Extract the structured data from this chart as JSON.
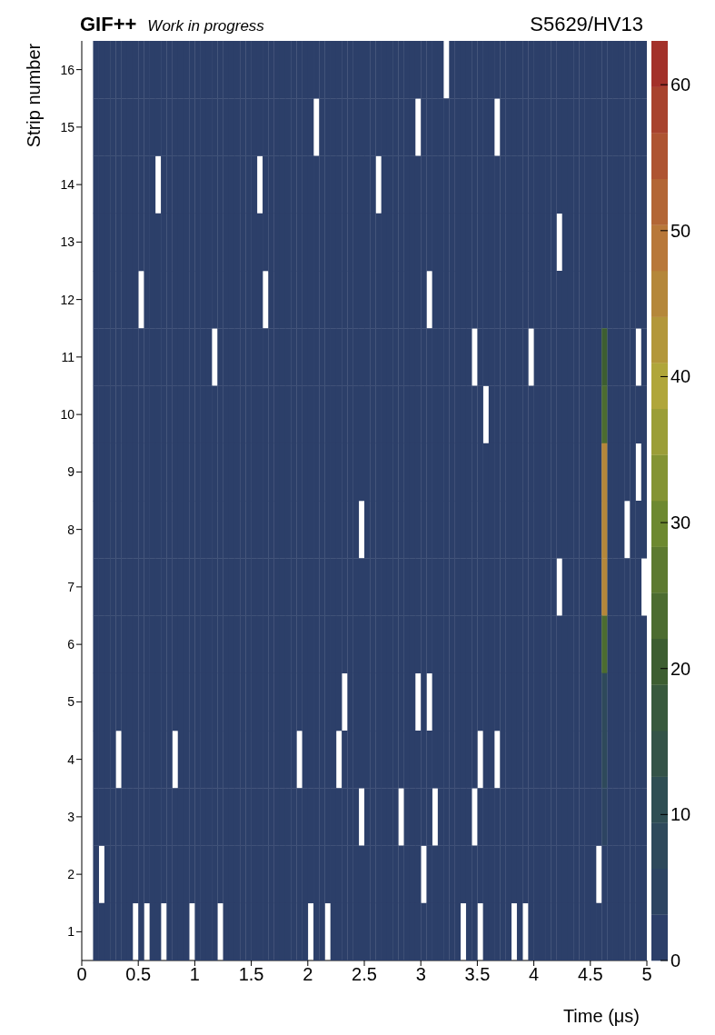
{
  "chart_data": {
    "type": "heatmap",
    "title": "GIF++",
    "subtitle": "Work in progress",
    "annotations": [
      "S5629/HV13"
    ],
    "xlabel": "Time (μs)",
    "ylabel": "Strip number",
    "x": [
      0.025,
      0.075,
      0.125,
      0.175,
      0.225,
      0.275,
      0.325,
      0.375,
      0.425,
      0.475,
      0.525,
      0.575,
      0.625,
      0.675,
      0.725,
      0.775,
      0.825,
      0.875,
      0.925,
      0.975,
      1.025,
      1.075,
      1.125,
      1.175,
      1.225,
      1.275,
      1.325,
      1.375,
      1.425,
      1.475,
      1.525,
      1.575,
      1.625,
      1.675,
      1.725,
      1.775,
      1.825,
      1.875,
      1.925,
      1.975,
      2.025,
      2.075,
      2.125,
      2.175,
      2.225,
      2.275,
      2.325,
      2.375,
      2.425,
      2.475,
      2.525,
      2.575,
      2.625,
      2.675,
      2.725,
      2.775,
      2.825,
      2.875,
      2.925,
      2.975,
      3.025,
      3.075,
      3.125,
      3.175,
      3.225,
      3.275,
      3.325,
      3.375,
      3.425,
      3.475,
      3.525,
      3.575,
      3.625,
      3.675,
      3.725,
      3.775,
      3.825,
      3.875,
      3.925,
      3.975,
      4.025,
      4.075,
      4.125,
      4.175,
      4.225,
      4.275,
      4.325,
      4.375,
      4.425,
      4.475,
      4.525,
      4.575,
      4.625,
      4.675,
      4.725,
      4.775,
      4.825,
      4.875,
      4.925,
      4.975
    ],
    "y_categories": [
      "16",
      "15",
      "14",
      "13",
      "12",
      "11",
      "10",
      "9",
      "8",
      "7",
      "6",
      "5",
      "4",
      "3",
      "2",
      "1"
    ],
    "cells": [
      [
        null,
        null,
        1,
        1,
        1,
        1,
        1,
        1,
        1,
        1,
        1,
        1,
        1,
        1,
        1,
        1,
        1,
        1,
        1,
        1,
        1,
        1,
        1,
        1,
        1,
        1,
        1,
        1,
        1,
        1,
        1,
        1,
        1,
        1,
        1,
        1,
        1,
        1,
        1,
        1,
        1,
        1,
        1,
        1,
        1,
        1,
        1,
        1,
        1,
        1,
        1,
        1,
        1,
        1,
        1,
        1,
        1,
        1,
        1,
        1,
        1,
        1,
        1,
        1,
        null,
        1,
        1,
        1,
        1,
        1,
        1,
        1,
        1,
        1,
        1,
        1,
        1,
        1,
        1,
        1,
        1,
        1,
        1,
        1,
        1,
        1,
        1,
        1,
        1,
        1,
        1,
        1,
        1,
        1,
        1,
        1,
        1,
        1,
        1,
        1
      ],
      [
        null,
        null,
        1,
        1,
        1,
        1,
        1,
        1,
        1,
        1,
        1,
        1,
        1,
        1,
        1,
        1,
        1,
        1,
        1,
        1,
        1,
        1,
        1,
        1,
        1,
        1,
        1,
        1,
        1,
        1,
        1,
        1,
        1,
        1,
        1,
        1,
        1,
        1,
        1,
        1,
        1,
        null,
        1,
        1,
        1,
        1,
        1,
        1,
        1,
        1,
        1,
        1,
        1,
        1,
        1,
        1,
        1,
        1,
        1,
        null,
        1,
        1,
        1,
        1,
        1,
        1,
        1,
        1,
        1,
        1,
        1,
        1,
        1,
        null,
        1,
        1,
        1,
        1,
        1,
        1,
        1,
        1,
        1,
        1,
        1,
        1,
        1,
        1,
        1,
        1,
        1,
        1,
        1,
        1,
        1,
        1,
        1,
        1,
        1,
        1
      ],
      [
        null,
        null,
        1,
        1,
        1,
        1,
        1,
        1,
        1,
        1,
        1,
        1,
        1,
        null,
        1,
        1,
        1,
        1,
        1,
        1,
        1,
        1,
        1,
        1,
        1,
        1,
        1,
        1,
        1,
        1,
        1,
        null,
        1,
        1,
        1,
        1,
        1,
        1,
        1,
        1,
        1,
        1,
        1,
        1,
        1,
        1,
        1,
        1,
        1,
        1,
        1,
        1,
        null,
        1,
        1,
        1,
        1,
        1,
        1,
        1,
        1,
        1,
        1,
        1,
        1,
        1,
        1,
        1,
        1,
        1,
        1,
        1,
        1,
        1,
        1,
        1,
        1,
        1,
        1,
        1,
        1,
        1,
        1,
        1,
        1,
        1,
        1,
        1,
        1,
        1,
        1,
        1,
        1,
        1,
        1,
        1,
        1,
        1,
        1,
        1
      ],
      [
        null,
        null,
        1,
        1,
        1,
        1,
        1,
        1,
        1,
        1,
        1,
        1,
        1,
        1,
        1,
        1,
        1,
        1,
        1,
        1,
        1,
        1,
        1,
        1,
        1,
        1,
        1,
        1,
        1,
        1,
        1,
        1,
        1,
        1,
        1,
        1,
        1,
        1,
        1,
        1,
        1,
        1,
        1,
        1,
        1,
        1,
        1,
        1,
        1,
        1,
        1,
        1,
        1,
        1,
        1,
        1,
        1,
        1,
        1,
        1,
        1,
        1,
        1,
        1,
        1,
        1,
        1,
        1,
        1,
        1,
        1,
        1,
        1,
        1,
        1,
        1,
        1,
        1,
        1,
        1,
        1,
        1,
        1,
        1,
        null,
        1,
        1,
        1,
        1,
        1,
        1,
        1,
        1,
        1,
        1,
        1,
        1,
        1,
        1,
        1
      ],
      [
        null,
        null,
        1,
        1,
        1,
        1,
        1,
        1,
        1,
        1,
        null,
        1,
        1,
        1,
        1,
        1,
        1,
        1,
        1,
        1,
        1,
        1,
        1,
        1,
        1,
        1,
        1,
        1,
        1,
        1,
        1,
        1,
        null,
        1,
        1,
        1,
        1,
        1,
        1,
        1,
        1,
        1,
        1,
        1,
        1,
        1,
        1,
        1,
        1,
        1,
        1,
        1,
        1,
        1,
        1,
        1,
        1,
        1,
        1,
        1,
        1,
        null,
        1,
        1,
        1,
        1,
        1,
        1,
        1,
        1,
        1,
        1,
        1,
        1,
        1,
        1,
        1,
        1,
        1,
        1,
        1,
        1,
        1,
        1,
        1,
        1,
        1,
        1,
        1,
        1,
        1,
        1,
        1,
        1,
        1,
        1,
        1,
        1,
        1,
        1
      ],
      [
        null,
        null,
        1,
        1,
        1,
        1,
        1,
        1,
        1,
        1,
        1,
        1,
        1,
        1,
        1,
        1,
        1,
        1,
        1,
        1,
        1,
        1,
        1,
        null,
        1,
        1,
        1,
        1,
        1,
        1,
        1,
        1,
        1,
        1,
        1,
        1,
        1,
        1,
        1,
        1,
        1,
        1,
        1,
        1,
        1,
        1,
        1,
        1,
        1,
        1,
        1,
        1,
        1,
        1,
        1,
        1,
        1,
        1,
        1,
        1,
        1,
        1,
        1,
        1,
        1,
        1,
        1,
        1,
        1,
        null,
        1,
        1,
        1,
        1,
        1,
        1,
        1,
        1,
        1,
        null,
        1,
        1,
        1,
        1,
        1,
        1,
        1,
        1,
        1,
        1,
        1,
        1,
        22,
        1,
        1,
        1,
        1,
        1,
        null,
        1
      ],
      [
        null,
        null,
        1,
        1,
        1,
        1,
        1,
        1,
        1,
        1,
        1,
        1,
        1,
        1,
        1,
        1,
        1,
        1,
        1,
        1,
        1,
        1,
        1,
        1,
        1,
        1,
        1,
        1,
        1,
        1,
        1,
        1,
        1,
        1,
        1,
        1,
        1,
        1,
        1,
        1,
        1,
        1,
        1,
        1,
        1,
        1,
        1,
        1,
        1,
        1,
        1,
        1,
        1,
        1,
        1,
        1,
        1,
        1,
        1,
        1,
        1,
        1,
        1,
        1,
        1,
        1,
        1,
        1,
        1,
        1,
        1,
        null,
        1,
        1,
        1,
        1,
        1,
        1,
        1,
        1,
        1,
        1,
        1,
        1,
        1,
        1,
        1,
        1,
        1,
        1,
        1,
        1,
        25,
        1,
        1,
        1,
        1,
        1,
        1,
        1
      ],
      [
        null,
        null,
        1,
        1,
        1,
        1,
        1,
        1,
        1,
        1,
        1,
        1,
        1,
        1,
        1,
        1,
        1,
        1,
        1,
        1,
        1,
        1,
        1,
        1,
        1,
        1,
        1,
        1,
        1,
        1,
        1,
        1,
        1,
        1,
        1,
        1,
        1,
        1,
        1,
        1,
        1,
        1,
        1,
        1,
        1,
        1,
        1,
        1,
        1,
        1,
        1,
        1,
        1,
        1,
        1,
        1,
        1,
        1,
        1,
        1,
        1,
        1,
        1,
        1,
        1,
        1,
        1,
        1,
        1,
        1,
        1,
        1,
        1,
        1,
        1,
        1,
        1,
        1,
        1,
        1,
        1,
        1,
        1,
        1,
        1,
        1,
        1,
        1,
        1,
        1,
        1,
        1,
        45,
        1,
        1,
        1,
        1,
        1,
        null,
        1
      ],
      [
        null,
        null,
        1,
        1,
        1,
        1,
        1,
        1,
        1,
        1,
        1,
        1,
        1,
        1,
        1,
        1,
        1,
        1,
        1,
        1,
        1,
        1,
        1,
        1,
        1,
        1,
        1,
        1,
        1,
        1,
        1,
        1,
        1,
        1,
        1,
        1,
        1,
        1,
        1,
        1,
        1,
        1,
        1,
        1,
        1,
        1,
        1,
        1,
        1,
        null,
        1,
        1,
        1,
        1,
        1,
        1,
        1,
        1,
        1,
        1,
        1,
        1,
        1,
        1,
        1,
        1,
        1,
        1,
        1,
        1,
        1,
        1,
        1,
        1,
        1,
        1,
        1,
        1,
        1,
        1,
        1,
        1,
        1,
        1,
        1,
        1,
        1,
        1,
        1,
        1,
        1,
        1,
        45,
        1,
        1,
        1,
        null,
        1,
        1,
        1
      ],
      [
        null,
        null,
        1,
        1,
        1,
        1,
        1,
        1,
        1,
        1,
        1,
        1,
        1,
        1,
        1,
        1,
        1,
        1,
        1,
        1,
        1,
        1,
        1,
        1,
        1,
        1,
        1,
        1,
        1,
        1,
        1,
        1,
        1,
        1,
        1,
        1,
        1,
        1,
        1,
        1,
        1,
        1,
        1,
        1,
        1,
        1,
        1,
        1,
        1,
        1,
        1,
        1,
        1,
        1,
        1,
        1,
        1,
        1,
        1,
        1,
        1,
        1,
        1,
        1,
        1,
        1,
        1,
        1,
        1,
        1,
        1,
        1,
        1,
        1,
        1,
        1,
        1,
        1,
        1,
        1,
        1,
        1,
        1,
        1,
        null,
        1,
        1,
        1,
        1,
        1,
        1,
        1,
        45,
        1,
        1,
        1,
        1,
        1,
        1,
        null
      ],
      [
        null,
        null,
        1,
        1,
        1,
        1,
        1,
        1,
        1,
        1,
        1,
        1,
        1,
        1,
        1,
        1,
        1,
        1,
        1,
        1,
        1,
        1,
        1,
        1,
        1,
        1,
        1,
        1,
        1,
        1,
        1,
        1,
        1,
        1,
        1,
        1,
        1,
        1,
        1,
        1,
        1,
        1,
        1,
        1,
        1,
        1,
        1,
        1,
        1,
        1,
        1,
        1,
        1,
        1,
        1,
        1,
        1,
        1,
        1,
        1,
        1,
        1,
        1,
        1,
        1,
        1,
        1,
        1,
        1,
        1,
        1,
        1,
        1,
        1,
        1,
        1,
        1,
        1,
        1,
        1,
        1,
        1,
        1,
        1,
        1,
        1,
        1,
        1,
        1,
        1,
        1,
        1,
        25,
        1,
        1,
        1,
        1,
        1,
        1,
        1
      ],
      [
        null,
        null,
        1,
        1,
        1,
        1,
        1,
        1,
        1,
        1,
        1,
        1,
        1,
        1,
        1,
        1,
        1,
        1,
        1,
        1,
        1,
        1,
        1,
        1,
        1,
        1,
        1,
        1,
        1,
        1,
        1,
        1,
        1,
        1,
        1,
        1,
        1,
        1,
        1,
        1,
        1,
        1,
        1,
        1,
        1,
        1,
        null,
        1,
        1,
        1,
        1,
        1,
        1,
        1,
        1,
        1,
        1,
        1,
        1,
        null,
        1,
        null,
        1,
        1,
        1,
        1,
        1,
        1,
        1,
        1,
        1,
        1,
        1,
        1,
        1,
        1,
        1,
        1,
        1,
        1,
        1,
        1,
        1,
        1,
        1,
        1,
        1,
        1,
        1,
        1,
        1,
        1,
        8,
        1,
        1,
        1,
        1,
        1,
        1,
        1
      ],
      [
        null,
        null,
        1,
        1,
        1,
        1,
        null,
        1,
        1,
        1,
        1,
        1,
        1,
        1,
        1,
        1,
        null,
        1,
        1,
        1,
        1,
        1,
        1,
        1,
        1,
        1,
        1,
        1,
        1,
        1,
        1,
        1,
        1,
        1,
        1,
        1,
        1,
        1,
        null,
        1,
        1,
        1,
        1,
        1,
        1,
        null,
        1,
        1,
        1,
        1,
        1,
        1,
        1,
        1,
        1,
        1,
        1,
        1,
        1,
        1,
        1,
        1,
        1,
        1,
        1,
        1,
        1,
        1,
        1,
        1,
        null,
        1,
        1,
        null,
        1,
        1,
        1,
        1,
        1,
        1,
        1,
        1,
        1,
        1,
        1,
        1,
        1,
        1,
        1,
        1,
        1,
        1,
        8,
        1,
        1,
        1,
        1,
        1,
        1,
        1
      ],
      [
        null,
        null,
        1,
        1,
        1,
        1,
        1,
        1,
        1,
        1,
        1,
        1,
        1,
        1,
        1,
        1,
        1,
        1,
        1,
        1,
        1,
        1,
        1,
        1,
        1,
        1,
        1,
        1,
        1,
        1,
        1,
        1,
        1,
        1,
        1,
        1,
        1,
        1,
        1,
        1,
        1,
        1,
        1,
        1,
        1,
        1,
        1,
        1,
        1,
        null,
        1,
        1,
        1,
        1,
        1,
        1,
        null,
        1,
        1,
        1,
        1,
        1,
        null,
        1,
        1,
        1,
        1,
        1,
        1,
        null,
        1,
        1,
        1,
        1,
        1,
        1,
        1,
        1,
        1,
        1,
        1,
        1,
        1,
        1,
        1,
        1,
        1,
        1,
        1,
        1,
        1,
        1,
        5,
        1,
        1,
        1,
        1,
        1,
        1,
        1
      ],
      [
        null,
        null,
        1,
        null,
        1,
        1,
        1,
        1,
        1,
        1,
        1,
        1,
        1,
        1,
        1,
        1,
        1,
        1,
        1,
        1,
        1,
        1,
        1,
        1,
        1,
        1,
        1,
        1,
        1,
        1,
        1,
        1,
        1,
        1,
        1,
        1,
        1,
        1,
        1,
        1,
        1,
        1,
        1,
        1,
        1,
        1,
        1,
        1,
        1,
        1,
        1,
        1,
        1,
        1,
        1,
        1,
        1,
        1,
        1,
        1,
        null,
        1,
        1,
        1,
        1,
        1,
        1,
        1,
        1,
        1,
        1,
        1,
        1,
        1,
        1,
        1,
        1,
        1,
        1,
        1,
        1,
        1,
        1,
        1,
        1,
        1,
        1,
        1,
        1,
        1,
        1,
        null,
        1,
        1,
        1,
        1,
        1,
        1,
        1,
        1
      ],
      [
        null,
        null,
        1,
        1,
        1,
        1,
        1,
        1,
        1,
        null,
        1,
        null,
        1,
        1,
        null,
        1,
        1,
        1,
        1,
        null,
        1,
        1,
        1,
        1,
        null,
        1,
        1,
        1,
        1,
        1,
        1,
        1,
        1,
        1,
        1,
        1,
        1,
        1,
        1,
        1,
        null,
        1,
        1,
        null,
        1,
        1,
        1,
        1,
        1,
        1,
        1,
        1,
        1,
        1,
        1,
        1,
        1,
        1,
        1,
        1,
        1,
        1,
        1,
        1,
        1,
        1,
        1,
        null,
        1,
        1,
        null,
        1,
        1,
        1,
        1,
        1,
        null,
        1,
        null,
        1,
        1,
        1,
        1,
        1,
        1,
        1,
        1,
        1,
        1,
        1,
        1,
        1,
        1,
        1,
        1,
        1,
        1,
        1,
        1,
        1
      ]
    ],
    "xlim": [
      0,
      5
    ],
    "xticks": [
      0,
      0.5,
      1,
      1.5,
      2,
      2.5,
      3,
      3.5,
      4,
      4.5,
      5
    ],
    "clim": [
      0,
      63
    ],
    "cticks": [
      0,
      10,
      20,
      30,
      40,
      50,
      60
    ]
  }
}
